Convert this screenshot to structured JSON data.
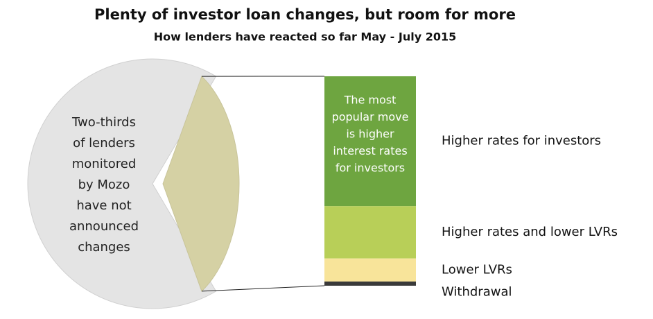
{
  "chart_data": {
    "type": "bar-of-pie",
    "title": "Plenty of investor loan changes, but room for more",
    "subtitle": "How lenders have reacted so far May - July 2015",
    "pie": {
      "values": [
        67,
        33
      ],
      "colors": [
        "#e4e4e4",
        "#d5d1a4"
      ]
    },
    "pie_annotation": [
      "Two-thirds",
      "of lenders",
      "monitored",
      "by Mozo",
      "have not",
      "announced",
      "changes"
    ],
    "bar": {
      "categories": [
        "Higher rates for investors",
        "Higher rates and lower LVRs",
        "Lower LVRs",
        "Withdrawal"
      ],
      "values": [
        62,
        25,
        11,
        2
      ],
      "colors": [
        "#6ea540",
        "#b8cf58",
        "#f8e49a",
        "#3a3a3a"
      ]
    },
    "bar_annotation": [
      "The most",
      "popular move",
      "is higher",
      "interest rates",
      "for investors"
    ]
  }
}
